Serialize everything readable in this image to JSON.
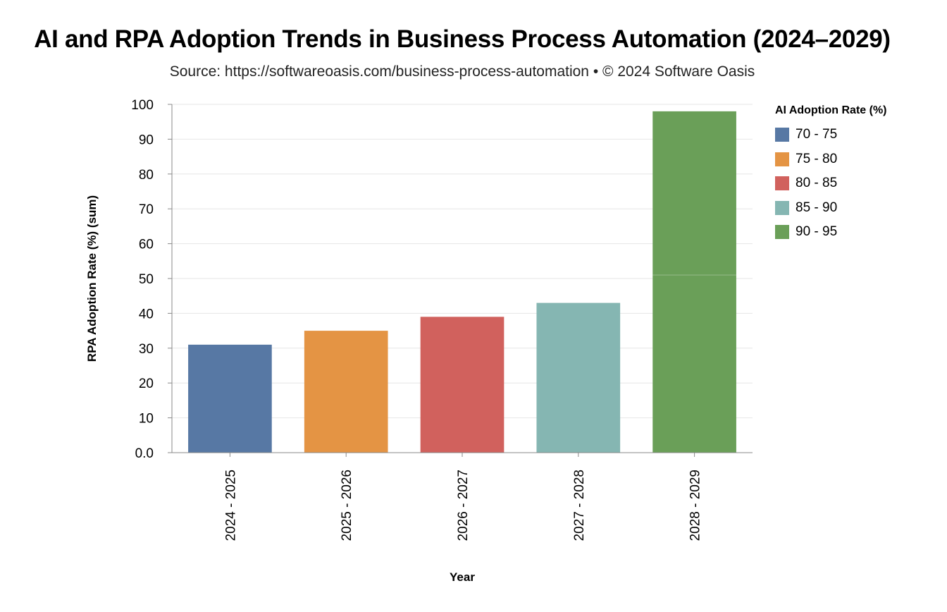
{
  "title": "AI and RPA Adoption Trends in Business Process Automation (2024–2029)",
  "subtitle": "Source: https://softwareoasis.com/business-process-automation • © 2024 Software Oasis",
  "legend": {
    "title": "AI Adoption Rate (%)",
    "items": [
      {
        "label": "70 - 75",
        "color": "#5778a4"
      },
      {
        "label": "75 - 80",
        "color": "#e49444"
      },
      {
        "label": "80 - 85",
        "color": "#d1615d"
      },
      {
        "label": "85 - 90",
        "color": "#85b6b2"
      },
      {
        "label": "90 - 95",
        "color": "#6a9f58"
      }
    ]
  },
  "chart_data": {
    "type": "bar",
    "stacked": true,
    "title": "AI and RPA Adoption Trends in Business Process Automation (2024–2029)",
    "xlabel": "Year",
    "ylabel": "RPA Adoption Rate (%) (sum)",
    "ylim": [
      0,
      100
    ],
    "yticks": [
      "0.0",
      "10",
      "20",
      "30",
      "40",
      "50",
      "60",
      "70",
      "80",
      "90",
      "100"
    ],
    "categories": [
      "2024 - 2025",
      "2025 - 2026",
      "2026 - 2027",
      "2027 - 2028",
      "2028 - 2029"
    ],
    "segments": [
      {
        "category": "2024 - 2025",
        "series": "70 - 75",
        "value": 31
      },
      {
        "category": "2025 - 2026",
        "series": "75 - 80",
        "value": 35
      },
      {
        "category": "2026 - 2027",
        "series": "80 - 85",
        "value": 39
      },
      {
        "category": "2027 - 2028",
        "series": "85 - 90",
        "value": 43
      },
      {
        "category": "2028 - 2029",
        "series": "90 - 95",
        "value": 51
      },
      {
        "category": "2028 - 2029",
        "series": "90 - 95",
        "value": 47
      }
    ],
    "grid": true,
    "legend_position": "right"
  }
}
